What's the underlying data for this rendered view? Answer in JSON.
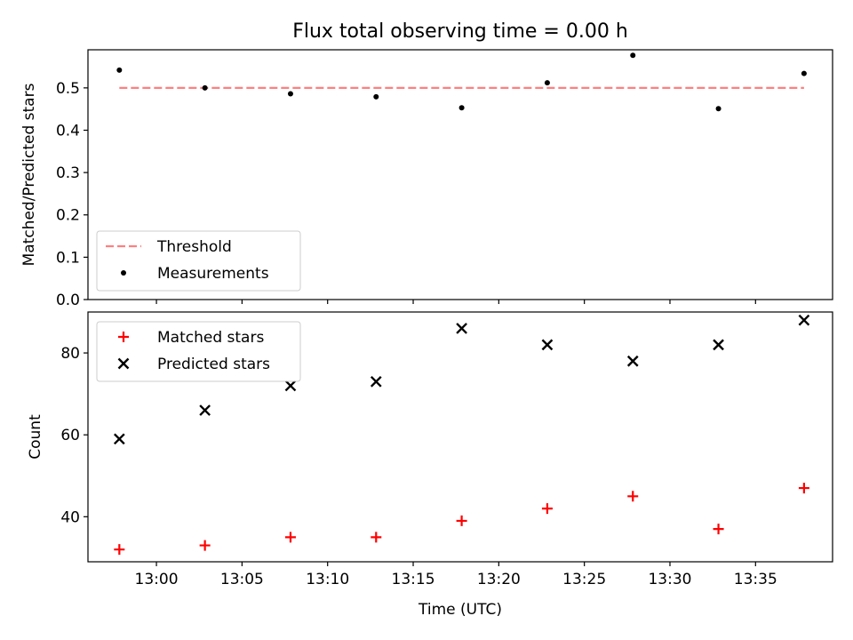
{
  "figure": {
    "title": "Flux total observing time = 0.00 h",
    "xlabel": "Time (UTC)"
  },
  "chart_data": [
    {
      "type": "scatter",
      "panel": "top",
      "ylabel": "Matched/Predicted stars",
      "xlabel": "",
      "xlim": [
        "12:56:00",
        "13:39:30"
      ],
      "ylim": [
        0,
        0.59
      ],
      "yticks": [
        0.0,
        0.1,
        0.2,
        0.3,
        0.4,
        0.5
      ],
      "ytick_labels": [
        "0.0",
        "0.1",
        "0.2",
        "0.3",
        "0.4",
        "0.5"
      ],
      "legend_position": "lower-left",
      "series": [
        {
          "name": "Threshold",
          "kind": "dashed-line",
          "color": "#ff7f7f",
          "x": [
            "12:57:50",
            "13:37:50"
          ],
          "y": [
            0.5,
            0.5
          ]
        },
        {
          "name": "Measurements",
          "kind": "dot",
          "color": "#000000",
          "x": [
            "12:57:50",
            "13:02:50",
            "13:07:50",
            "13:12:50",
            "13:17:50",
            "13:22:50",
            "13:27:50",
            "13:32:50",
            "13:37:50"
          ],
          "y": [
            0.542,
            0.5,
            0.486,
            0.479,
            0.453,
            0.512,
            0.577,
            0.451,
            0.534
          ]
        }
      ]
    },
    {
      "type": "scatter",
      "panel": "bottom",
      "ylabel": "Count",
      "xlabel": "Time (UTC)",
      "xlim": [
        "12:56:00",
        "13:39:30"
      ],
      "ylim": [
        29,
        90
      ],
      "yticks": [
        40,
        60,
        80
      ],
      "ytick_labels": [
        "40",
        "60",
        "80"
      ],
      "xtick_labels": [
        "13:00",
        "13:05",
        "13:10",
        "13:15",
        "13:20",
        "13:25",
        "13:30",
        "13:35"
      ],
      "legend_position": "upper-left",
      "series": [
        {
          "name": "Matched stars",
          "marker": "plus",
          "color": "#ff0000",
          "x": [
            "12:57:50",
            "13:02:50",
            "13:07:50",
            "13:12:50",
            "13:17:50",
            "13:22:50",
            "13:27:50",
            "13:32:50",
            "13:37:50"
          ],
          "y": [
            32,
            33,
            35,
            35,
            39,
            42,
            45,
            37,
            47
          ]
        },
        {
          "name": "Predicted stars",
          "marker": "x",
          "color": "#000000",
          "x": [
            "12:57:50",
            "13:02:50",
            "13:07:50",
            "13:12:50",
            "13:17:50",
            "13:22:50",
            "13:27:50",
            "13:32:50",
            "13:37:50"
          ],
          "y": [
            59,
            66,
            72,
            73,
            86,
            82,
            78,
            82,
            88
          ]
        }
      ]
    }
  ]
}
